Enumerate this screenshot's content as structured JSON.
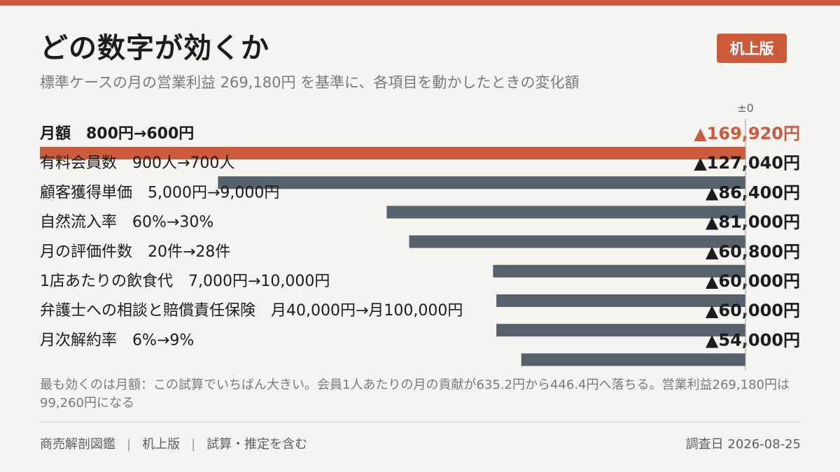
{
  "header": {
    "title": "どの数字が効くか",
    "badge": "机上版",
    "subtitle": "標準ケースの月の営業利益  269,180円  を基準に、各項目を動かしたときの変化額"
  },
  "colors": {
    "accent": "#cc5b3c",
    "bar": "#56616b",
    "text": "#1c1c1c",
    "muted": "#7a7a7a"
  },
  "chart_data": {
    "type": "bar",
    "orientation": "horizontal",
    "baseline": 0,
    "baseline_label": "±0",
    "xlim": [
      -169920,
      0
    ],
    "categories": [
      "月額　800円→600円",
      "有料会員数　900人→700人",
      "顧客獲得単価　5,000円→9,000円",
      "自然流入率　60%→30%",
      "月の評価件数　20件→28件",
      "1店あたりの飲食代　7,000円→10,000円",
      "弁護士への相談と賠償責任保険　月40,000円→月100,000円",
      "月次解約率　6%→9%"
    ],
    "values": [
      -169920,
      -127040,
      -86400,
      -81000,
      -60800,
      -60000,
      -60000,
      -54000
    ],
    "value_labels": [
      "▲169,920円",
      "▲127,040円",
      "▲86,400円",
      "▲81,000円",
      "▲60,800円",
      "▲60,000円",
      "▲60,000円",
      "▲54,000円"
    ],
    "highlight_index": 0
  },
  "note": "最も効くのは月額：この試算でいちばん大きい。会員1人あたりの月の貢献が635.2円から446.4円へ落ちる。営業利益269,180円は99,260円になる",
  "footer": {
    "source": "商売解剖図鑑",
    "edition": "机上版",
    "disclaimer": "試算・推定を含む",
    "date": "調査日  2026-08-25"
  }
}
